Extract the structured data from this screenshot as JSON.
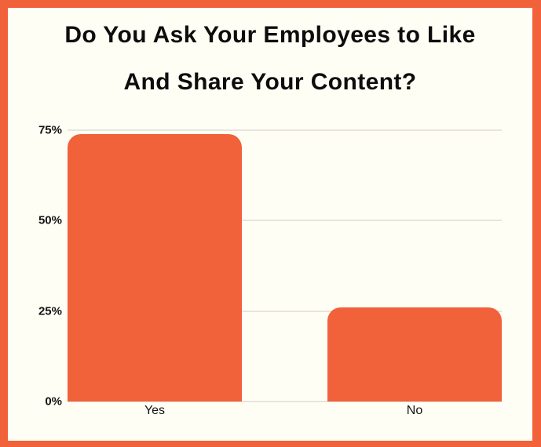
{
  "page": {
    "background_color": "#FFFEF5",
    "frame_color": "#F1613A"
  },
  "chart_data": {
    "type": "bar",
    "title": "Do You Ask Your Employees to Like And Share Your Content?",
    "title_lines": [
      "Do You Ask Your Employees to Like",
      "And Share Your Content?"
    ],
    "categories": [
      "Yes",
      "No"
    ],
    "values": [
      74,
      26
    ],
    "value_unit": "%",
    "xlabel": "",
    "ylabel": "",
    "ylim": [
      0,
      75
    ],
    "yticks": [
      {
        "value": 0,
        "label": "0%"
      },
      {
        "value": 25,
        "label": "25%"
      },
      {
        "value": 50,
        "label": "50%"
      },
      {
        "value": 75,
        "label": "75%"
      }
    ],
    "grid": true,
    "legend_position": "none",
    "bar_color": "#F1613A",
    "gridline_color": "#E7E5DD",
    "text_color": "#0d0d0d"
  }
}
